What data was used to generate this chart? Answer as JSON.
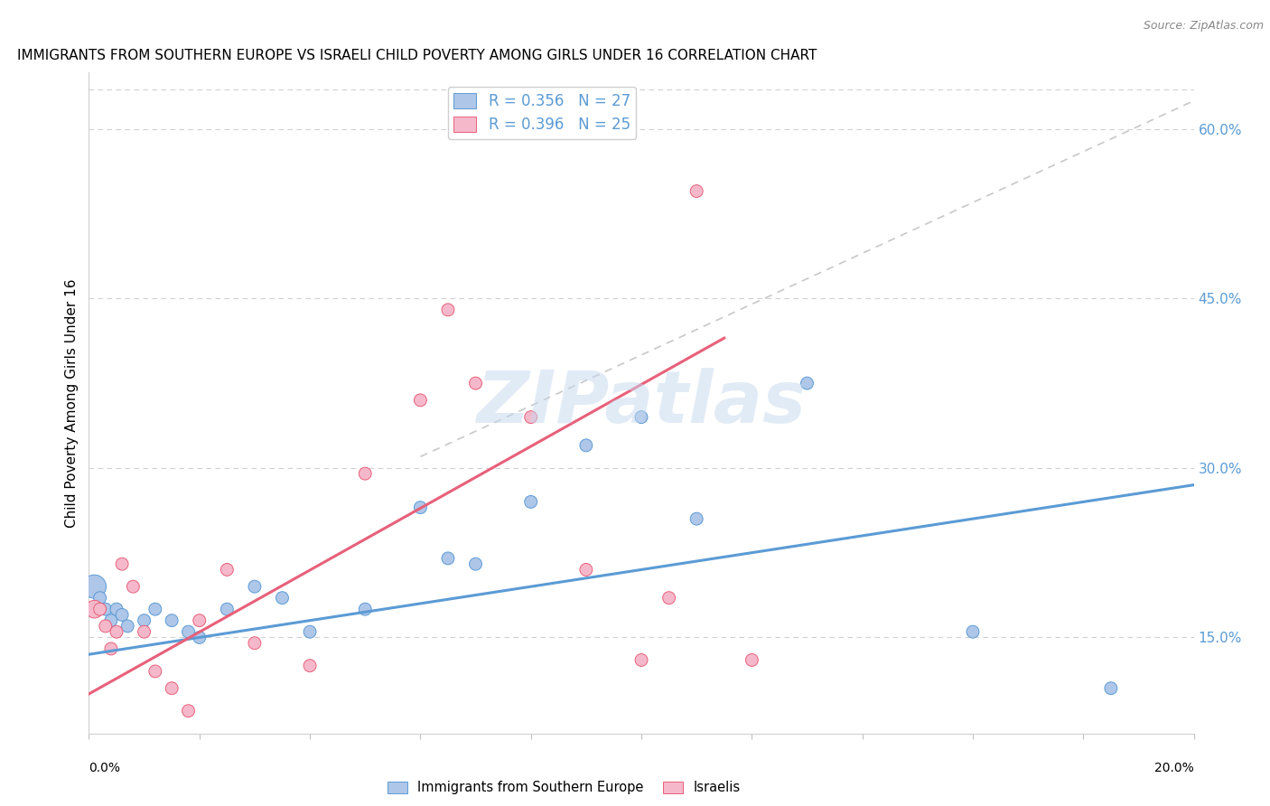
{
  "title": "IMMIGRANTS FROM SOUTHERN EUROPE VS ISRAELI CHILD POVERTY AMONG GIRLS UNDER 16 CORRELATION CHART",
  "source": "Source: ZipAtlas.com",
  "ylabel": "Child Poverty Among Girls Under 16",
  "watermark": "ZIPatlas",
  "legend_blue_r": "R = 0.356",
  "legend_blue_n": "N = 27",
  "legend_pink_r": "R = 0.396",
  "legend_pink_n": "N = 25",
  "blue_color": "#aec6e8",
  "pink_color": "#f5b8cb",
  "blue_line_color": "#5b9bd5",
  "pink_line_color": "#e8607a",
  "diag_line_color": "#c8c8c8",
  "blue_scatter_x": [
    0.001,
    0.002,
    0.003,
    0.004,
    0.005,
    0.006,
    0.007,
    0.01,
    0.012,
    0.015,
    0.018,
    0.02,
    0.025,
    0.03,
    0.035,
    0.04,
    0.05,
    0.06,
    0.065,
    0.07,
    0.08,
    0.09,
    0.1,
    0.11,
    0.13,
    0.16,
    0.185
  ],
  "blue_scatter_y": [
    0.195,
    0.185,
    0.175,
    0.165,
    0.175,
    0.17,
    0.16,
    0.165,
    0.175,
    0.165,
    0.155,
    0.15,
    0.175,
    0.195,
    0.185,
    0.155,
    0.175,
    0.265,
    0.22,
    0.215,
    0.27,
    0.32,
    0.345,
    0.255,
    0.375,
    0.155,
    0.105
  ],
  "blue_scatter_size": [
    350,
    100,
    100,
    100,
    100,
    100,
    100,
    100,
    100,
    100,
    100,
    100,
    100,
    100,
    100,
    100,
    100,
    100,
    100,
    100,
    100,
    100,
    100,
    100,
    100,
    100,
    100
  ],
  "pink_scatter_x": [
    0.001,
    0.002,
    0.003,
    0.004,
    0.005,
    0.006,
    0.008,
    0.01,
    0.012,
    0.015,
    0.018,
    0.02,
    0.025,
    0.03,
    0.04,
    0.05,
    0.06,
    0.065,
    0.07,
    0.08,
    0.09,
    0.1,
    0.105,
    0.11,
    0.12
  ],
  "pink_scatter_y": [
    0.175,
    0.175,
    0.16,
    0.14,
    0.155,
    0.215,
    0.195,
    0.155,
    0.12,
    0.105,
    0.085,
    0.165,
    0.21,
    0.145,
    0.125,
    0.295,
    0.36,
    0.44,
    0.375,
    0.345,
    0.21,
    0.13,
    0.185,
    0.545,
    0.13
  ],
  "pink_scatter_size": [
    200,
    100,
    100,
    100,
    100,
    100,
    100,
    100,
    100,
    100,
    100,
    100,
    100,
    100,
    100,
    100,
    100,
    100,
    100,
    100,
    100,
    100,
    100,
    100,
    100
  ],
  "xlim": [
    0.0,
    0.2
  ],
  "ylim": [
    0.065,
    0.65
  ],
  "blue_line_x0": 0.0,
  "blue_line_x1": 0.2,
  "blue_line_y0": 0.135,
  "blue_line_y1": 0.285,
  "pink_line_x0": 0.0,
  "pink_line_x1": 0.115,
  "pink_line_y0": 0.1,
  "pink_line_y1": 0.415,
  "diag_line_x0": 0.06,
  "diag_line_x1": 0.2,
  "diag_line_y0": 0.31,
  "diag_line_y1": 0.625,
  "ytick_positions": [
    0.15,
    0.3,
    0.45,
    0.6
  ],
  "ytick_labels": [
    "15.0%",
    "30.0%",
    "45.0%",
    "60.0%"
  ],
  "xtick_positions": [
    0.0,
    0.02,
    0.04,
    0.06,
    0.08,
    0.1,
    0.12,
    0.14,
    0.16,
    0.18,
    0.2
  ]
}
